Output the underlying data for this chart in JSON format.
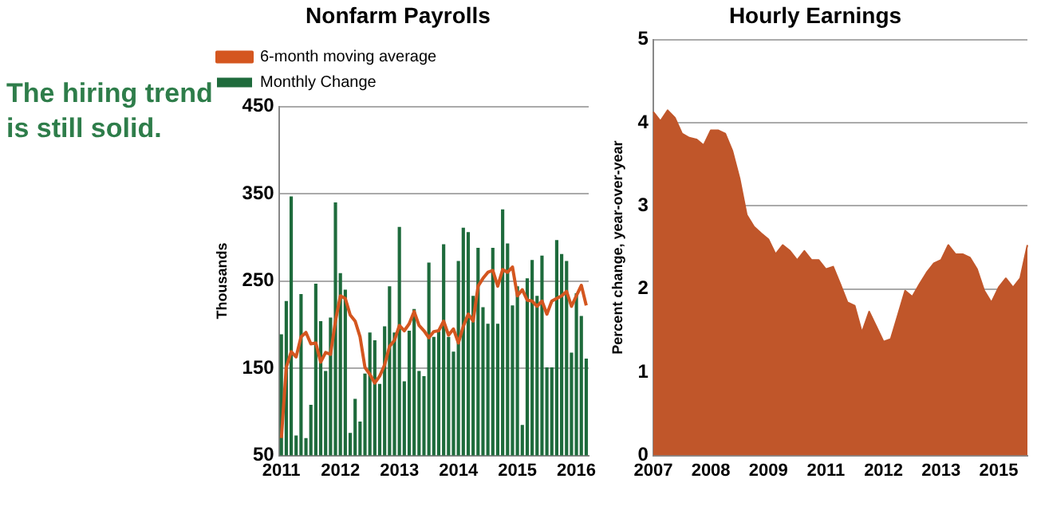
{
  "chart_data": [
    {
      "type": "bar",
      "title": "Nonfarm Payrolls",
      "ylabel": "Thousands",
      "annotations": [
        "The hiring trend is still solid."
      ],
      "categories": [
        "2011",
        null,
        null,
        null,
        null,
        null,
        null,
        null,
        null,
        null,
        null,
        null,
        "2012",
        null,
        null,
        null,
        null,
        null,
        null,
        null,
        null,
        null,
        null,
        null,
        "2013",
        null,
        null,
        null,
        null,
        null,
        null,
        null,
        null,
        null,
        null,
        null,
        "2014",
        null,
        null,
        null,
        null,
        null,
        null,
        null,
        null,
        null,
        null,
        null,
        "2015",
        null,
        null,
        null,
        null,
        null,
        null,
        null,
        null,
        null,
        null,
        null,
        "2016",
        null,
        null
      ],
      "series": [
        {
          "name": "Monthly Change",
          "type": "bar",
          "color": "#1e6b3c",
          "values": [
            189,
            227,
            347,
            73,
            235,
            70,
            108,
            247,
            204,
            147,
            208,
            340,
            259,
            240,
            76,
            115,
            89,
            144,
            191,
            182,
            132,
            198,
            244,
            191,
            312,
            135,
            193,
            218,
            147,
            141,
            271,
            186,
            192,
            292,
            186,
            169,
            273,
            311,
            306,
            233,
            288,
            220,
            201,
            288,
            201,
            332,
            293,
            222,
            244,
            85,
            253,
            274,
            233,
            279,
            151,
            151,
            297,
            281,
            273,
            168,
            236,
            210,
            161
          ]
        },
        {
          "name": "6-month moving average",
          "type": "line",
          "color": "#d4561f",
          "values": [
            70,
            151,
            169,
            163,
            186,
            191,
            178,
            179,
            157,
            168,
            166,
            204,
            233,
            230,
            211,
            204,
            186,
            151,
            143,
            133,
            141,
            154,
            175,
            182,
            199,
            193,
            201,
            215,
            199,
            193,
            185,
            192,
            193,
            204,
            188,
            195,
            179,
            198,
            212,
            204,
            244,
            253,
            260,
            262,
            244,
            263,
            260,
            266,
            233,
            240,
            228,
            227,
            221,
            227,
            212,
            227,
            230,
            233,
            238,
            221,
            233,
            245,
            222
          ]
        }
      ],
      "ylim": [
        50,
        450
      ],
      "yticks": [
        50,
        150,
        250,
        350,
        450
      ],
      "grid": "y",
      "legend": "top left"
    },
    {
      "type": "area",
      "title": "Hourly Earnings",
      "ylabel": "Percent change, year-over-year",
      "categories": [
        "2007",
        null,
        null,
        null,
        null,
        null,
        null,
        null,
        "2008",
        null,
        null,
        null,
        null,
        null,
        null,
        null,
        "2009",
        null,
        null,
        null,
        null,
        null,
        null,
        null,
        "2011",
        null,
        null,
        null,
        null,
        null,
        null,
        null,
        "2012",
        null,
        null,
        null,
        null,
        null,
        null,
        null,
        "2013",
        null,
        null,
        null,
        null,
        null,
        null,
        null,
        "2015",
        null,
        null,
        null,
        null
      ],
      "series": [
        {
          "color": "#c0562a",
          "values": [
            4.13,
            4.02,
            4.15,
            4.06,
            3.87,
            3.82,
            3.8,
            3.73,
            3.91,
            3.91,
            3.87,
            3.66,
            3.33,
            2.89,
            2.75,
            2.67,
            2.6,
            2.42,
            2.53,
            2.46,
            2.35,
            2.46,
            2.35,
            2.35,
            2.24,
            2.27,
            2.06,
            1.84,
            1.8,
            1.48,
            1.73,
            1.55,
            1.37,
            1.4,
            1.69,
            1.98,
            1.91,
            2.06,
            2.2,
            2.31,
            2.35,
            2.53,
            2.42,
            2.42,
            2.38,
            2.24,
            1.98,
            1.84,
            2.02,
            2.13,
            2.02,
            2.13,
            2.53
          ]
        }
      ],
      "ylim": [
        0,
        5
      ],
      "yticks": [
        0,
        1,
        2,
        3,
        4,
        5
      ],
      "grid": "y"
    }
  ]
}
